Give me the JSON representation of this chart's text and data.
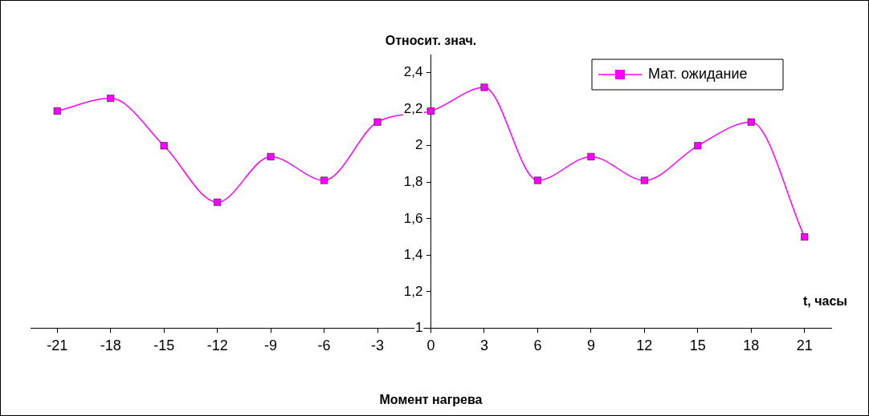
{
  "chart_data": {
    "type": "line",
    "title": "Момент нагрева",
    "xlabel": "t, часы",
    "ylabel": "Относит. знач.",
    "x": [
      -21,
      -18,
      -15,
      -12,
      -9,
      -6,
      -3,
      0,
      3,
      6,
      9,
      12,
      15,
      18,
      21
    ],
    "series": [
      {
        "name": "Мат. ожидание",
        "color": "#ff00ff",
        "values": [
          2.19,
          2.26,
          2.0,
          1.69,
          1.94,
          1.81,
          2.13,
          2.19,
          2.32,
          1.81,
          1.94,
          1.81,
          2.0,
          2.13,
          1.5
        ]
      }
    ],
    "xlim": [
      -22.5,
      22.5
    ],
    "xticks": [
      -21,
      -18,
      -15,
      -12,
      -9,
      -6,
      -3,
      0,
      3,
      6,
      9,
      12,
      15,
      18,
      21
    ],
    "ylim": [
      1,
      2.5
    ],
    "yticks": [
      1,
      {
        "value": 1.2,
        "label": "1,2"
      },
      {
        "value": 1.4,
        "label": "1,4"
      },
      {
        "value": 1.6,
        "label": "1,6"
      },
      {
        "value": 1.8,
        "label": "1,8"
      },
      2,
      {
        "value": 2.2,
        "label": "2,2"
      },
      {
        "value": 2.4,
        "label": "2,4"
      }
    ],
    "grid": false,
    "legend": "top right",
    "marker": "square",
    "line_style": "solid"
  }
}
